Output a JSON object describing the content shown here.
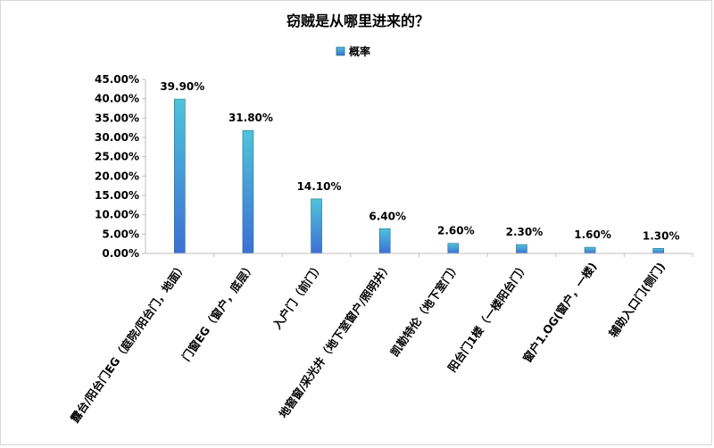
{
  "chart_data": {
    "type": "bar",
    "title": "窃贼是从哪里进来的？",
    "categories": [
      "露台/阳台门EG（庭院/阳台门，地面）",
      "门窗EG（窗户，底层）",
      "入户门（前门）",
      "地窖窗/采光井（地下室窗户/照明井）",
      "凯勒特伦（地下室门）",
      "阳台门1楼（一楼阳台门）",
      "窗户1.OG(窗户，一楼)",
      "辅助入口门(侧门)"
    ],
    "series": [
      {
        "name": "概率",
        "values": [
          39.9,
          31.8,
          14.1,
          6.4,
          2.6,
          2.3,
          1.6,
          1.3
        ]
      }
    ],
    "data_labels": [
      "39.90%",
      "31.80%",
      "14.10%",
      "6.40%",
      "2.60%",
      "2.30%",
      "1.60%",
      "1.30%"
    ],
    "y_ticks": [
      "0.00%",
      "5.00%",
      "10.00%",
      "15.00%",
      "20.00%",
      "25.00%",
      "30.00%",
      "35.00%",
      "40.00%",
      "45.00%"
    ],
    "ylim": [
      0,
      45
    ],
    "xlabel": "",
    "ylabel": "",
    "grid": false,
    "legend_position": "top",
    "colors": {
      "bar_top": "#4fc3d9",
      "bar_bottom": "#3d6fd6",
      "bar_edge": "#1f6f8b",
      "axis": "#bfbfbf",
      "text": "#000000"
    }
  }
}
